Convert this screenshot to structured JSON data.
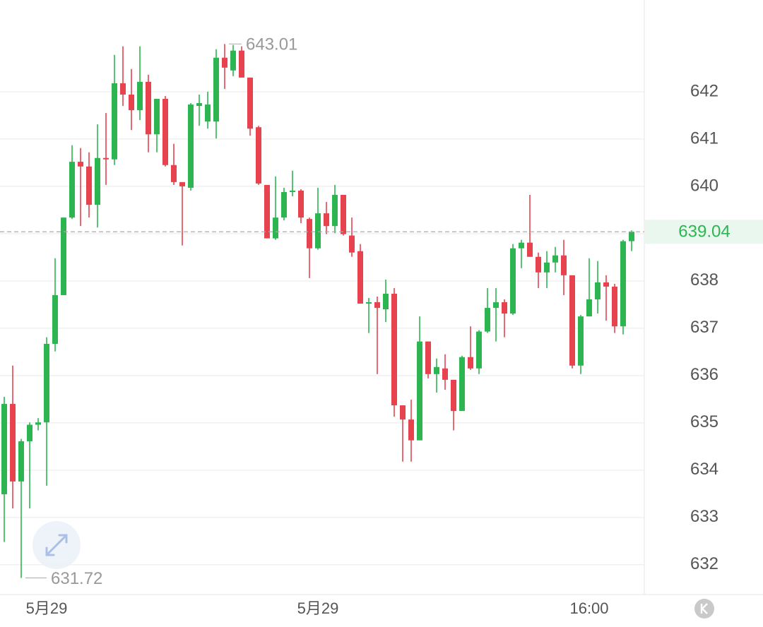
{
  "chart_data": {
    "type": "candlestick",
    "categories": [
      null,
      null,
      null,
      null,
      null,
      "5月29",
      null,
      null,
      null,
      null,
      null,
      null,
      null,
      null,
      null,
      null,
      null,
      null,
      null,
      null,
      null,
      null,
      null,
      null,
      null,
      null,
      null,
      null,
      null,
      null,
      null,
      null,
      null,
      null,
      null,
      null,
      null,
      "5月29",
      null,
      null,
      null,
      null,
      null,
      null,
      null,
      null,
      null,
      null,
      null,
      null,
      null,
      null,
      null,
      null,
      null,
      null,
      null,
      null,
      null,
      null,
      null,
      null,
      null,
      null,
      null,
      null,
      null,
      null,
      null,
      "16:00",
      null,
      null,
      null,
      null,
      null
    ],
    "open": [
      633.49,
      635.4,
      633.76,
      634.61,
      634.96,
      635.01,
      636.67,
      637.7,
      639.34,
      640.52,
      640.42,
      639.61,
      640.6,
      640.57,
      642.18,
      641.94,
      641.61,
      642.21,
      641.1,
      641.85,
      640.45,
      640.09,
      639.97,
      641.7,
      641.37,
      641.37,
      642.72,
      642.45,
      642.87,
      642.3,
      641.25,
      640.03,
      638.9,
      639.34,
      639.88,
      639.91,
      639.31,
      638.69,
      639.43,
      639.16,
      639.82,
      638.96,
      638.63,
      637.52,
      637.55,
      637.4,
      637.73,
      635.37,
      635.07,
      634.63,
      636.72,
      636.03,
      636.15,
      635.91,
      635.25,
      636.39,
      636.15,
      636.93,
      637.43,
      637.55,
      637.31,
      638.69,
      638.81,
      638.51,
      638.18,
      638.39,
      638.54,
      638.12,
      636.21,
      637.25,
      637.61,
      637.97,
      637.88,
      637.04,
      638.84
    ],
    "high": [
      635.55,
      636.21,
      634.66,
      635.01,
      635.1,
      636.81,
      638.48,
      639.34,
      640.87,
      640.81,
      640.72,
      641.31,
      641.55,
      642.78,
      642.96,
      642.48,
      642.96,
      642.36,
      641.85,
      641.91,
      640.9,
      640.09,
      641.76,
      641.94,
      642.0,
      642.9,
      643.01,
      642.99,
      642.96,
      642.3,
      641.28,
      640.03,
      640.21,
      639.97,
      640.33,
      639.94,
      639.34,
      639.97,
      639.67,
      640.03,
      639.82,
      639.34,
      638.78,
      637.64,
      637.67,
      638.03,
      637.85,
      635.37,
      635.49,
      637.25,
      636.72,
      636.36,
      636.45,
      635.91,
      636.42,
      637.04,
      636.96,
      637.85,
      637.85,
      637.61,
      638.78,
      638.87,
      639.82,
      638.6,
      638.63,
      638.72,
      638.87,
      638.12,
      637.28,
      638.48,
      638.42,
      638.12,
      637.94,
      638.87,
      639.07
    ],
    "low": [
      632.48,
      633.19,
      631.72,
      633.19,
      634.84,
      633.67,
      636.51,
      637.7,
      639.31,
      639.16,
      639.34,
      639.13,
      640.03,
      640.45,
      641.7,
      641.19,
      641.4,
      640.72,
      640.72,
      640.42,
      640.03,
      638.75,
      639.91,
      641.28,
      641.22,
      641.01,
      642.06,
      642.33,
      642.3,
      641.07,
      640.03,
      638.9,
      638.87,
      639.28,
      639.79,
      639.22,
      638.06,
      638.66,
      638.99,
      639.01,
      638.96,
      638.51,
      637.52,
      636.9,
      636.03,
      637.13,
      635.13,
      634.18,
      634.18,
      634.63,
      635.94,
      635.64,
      635.7,
      634.84,
      635.25,
      636.12,
      636.03,
      636.9,
      636.72,
      636.81,
      637.28,
      638.27,
      638.51,
      637.85,
      637.85,
      638.18,
      637.7,
      636.15,
      636.03,
      637.25,
      637.31,
      637.16,
      636.9,
      636.87,
      638.63
    ],
    "close": [
      635.4,
      633.76,
      634.61,
      634.96,
      635.01,
      636.67,
      637.7,
      639.34,
      640.52,
      640.42,
      639.61,
      640.6,
      640.57,
      642.18,
      641.94,
      641.61,
      642.21,
      641.1,
      641.85,
      640.45,
      640.09,
      640.0,
      641.73,
      641.76,
      641.73,
      642.72,
      642.51,
      642.87,
      642.3,
      641.22,
      640.06,
      638.9,
      639.34,
      639.88,
      639.91,
      639.34,
      638.69,
      639.43,
      639.16,
      639.82,
      638.99,
      638.6,
      637.52,
      637.55,
      637.43,
      637.73,
      635.37,
      635.07,
      634.63,
      636.72,
      636.03,
      636.18,
      635.91,
      635.25,
      636.39,
      636.15,
      636.93,
      637.43,
      637.55,
      637.31,
      638.69,
      638.81,
      638.51,
      638.18,
      638.39,
      638.54,
      638.12,
      636.21,
      637.25,
      637.61,
      637.97,
      637.88,
      637.04,
      638.84,
      639.04
    ],
    "ylim": [
      631.37,
      643.94
    ],
    "yticks": [
      632,
      633,
      634,
      635,
      636,
      637,
      638,
      639,
      640,
      641,
      642
    ],
    "grid": true,
    "up_color": "#2db552",
    "down_color": "#e6434f"
  }
}
